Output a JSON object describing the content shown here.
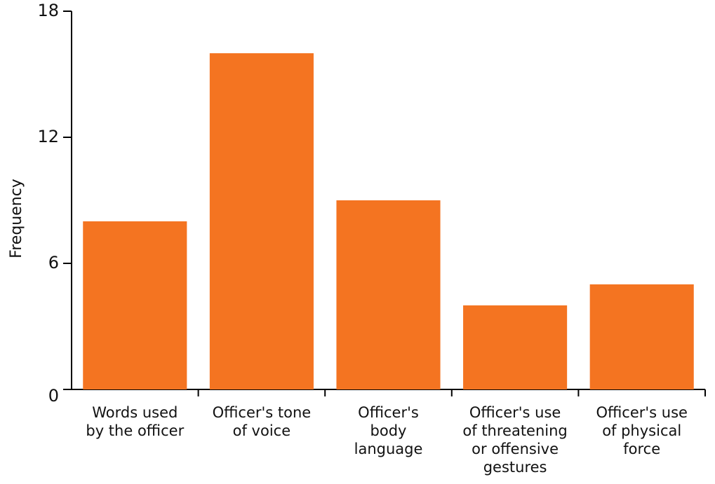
{
  "chart_data": {
    "type": "bar",
    "ylabel": "Frequency",
    "categories": [
      "Words used\nby the officer",
      "Officer's tone\nof voice",
      "Officer's\nbody\nlanguage",
      "Officer's use\nof threatening\nor offensive\ngestures",
      "Officer's use\nof physical\nforce"
    ],
    "values": [
      8,
      16,
      9,
      4,
      5
    ],
    "color": "#f47421",
    "ylim": [
      0,
      18
    ],
    "yticks": [
      0,
      6,
      12,
      18
    ],
    "grid": false
  }
}
